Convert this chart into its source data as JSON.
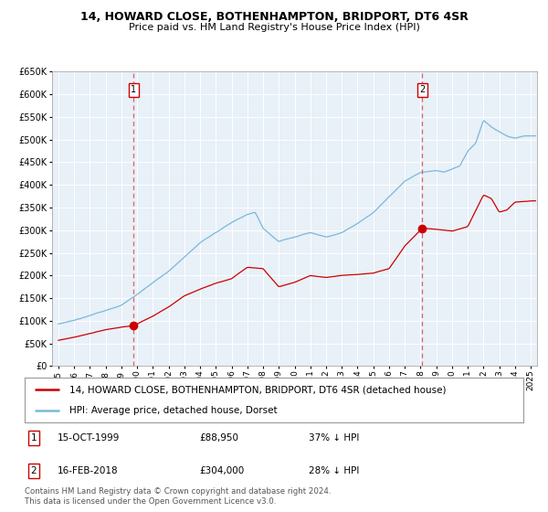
{
  "title_line1": "14, HOWARD CLOSE, BOTHENHAMPTON, BRIDPORT, DT6 4SR",
  "title_line2": "Price paid vs. HM Land Registry's House Price Index (HPI)",
  "legend_line1": "14, HOWARD CLOSE, BOTHENHAMPTON, BRIDPORT, DT6 4SR (detached house)",
  "legend_line2": "HPI: Average price, detached house, Dorset",
  "sale1_date": "15-OCT-1999",
  "sale1_price": 88950,
  "sale1_label": "37% ↓ HPI",
  "sale2_date": "16-FEB-2018",
  "sale2_price": 304000,
  "sale2_label": "28% ↓ HPI",
  "footnote": "Contains HM Land Registry data © Crown copyright and database right 2024.\nThis data is licensed under the Open Government Licence v3.0.",
  "hpi_color": "#7ab8d9",
  "price_color": "#cc0000",
  "vline_color": "#e06060",
  "plot_bg": "#e8f0f8",
  "ylim_max": 650000,
  "sale1_year": 1999.79,
  "sale2_year": 2018.12,
  "hpi_anchors_x": [
    1995,
    1996,
    1997,
    1998,
    1999,
    2000,
    2001,
    2002,
    2003,
    2004,
    2005,
    2006,
    2007,
    2007.5,
    2008,
    2009,
    2010,
    2011,
    2012,
    2013,
    2014,
    2015,
    2016,
    2017,
    2018,
    2019,
    2019.5,
    2020,
    2020.5,
    2021,
    2021.5,
    2022,
    2022.5,
    2023,
    2023.5,
    2024,
    2024.5,
    2025.2
  ],
  "hpi_anchors_y": [
    93000,
    100000,
    110000,
    122000,
    135000,
    158000,
    185000,
    210000,
    240000,
    272000,
    295000,
    318000,
    335000,
    340000,
    305000,
    275000,
    285000,
    295000,
    285000,
    295000,
    315000,
    340000,
    375000,
    410000,
    430000,
    435000,
    432000,
    438000,
    445000,
    478000,
    495000,
    545000,
    530000,
    520000,
    510000,
    505000,
    510000,
    510000
  ],
  "price_anchors_x": [
    1995,
    1996,
    1997,
    1998,
    1999.79,
    2001,
    2002,
    2003,
    2004,
    2005,
    2006,
    2007,
    2008,
    2009,
    2010,
    2011,
    2012,
    2013,
    2014,
    2015,
    2016,
    2017,
    2018.12,
    2019,
    2020,
    2021,
    2022,
    2022.5,
    2023,
    2023.5,
    2024,
    2025.2
  ],
  "price_anchors_y": [
    57000,
    64000,
    72000,
    80000,
    88950,
    110000,
    130000,
    155000,
    170000,
    183000,
    193000,
    218000,
    215000,
    175000,
    185000,
    200000,
    195000,
    200000,
    202000,
    205000,
    215000,
    265000,
    304000,
    302000,
    298000,
    308000,
    378000,
    370000,
    340000,
    345000,
    362000,
    365000
  ]
}
